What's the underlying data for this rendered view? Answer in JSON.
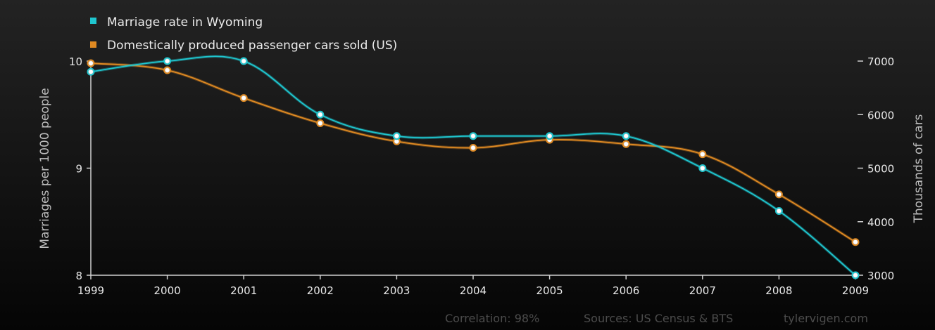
{
  "chart_data": {
    "type": "line",
    "x": [
      1999,
      2000,
      2001,
      2002,
      2003,
      2004,
      2005,
      2006,
      2007,
      2008,
      2009
    ],
    "xticks": [
      "1999",
      "2000",
      "2001",
      "2002",
      "2003",
      "2004",
      "2005",
      "2006",
      "2007",
      "2008",
      "2009"
    ],
    "series": [
      {
        "name": "Marriage rate in Wyoming",
        "axis": "left",
        "color": "#1fc6cf",
        "values": [
          9.9,
          10.0,
          10.0,
          9.5,
          9.3,
          9.3,
          9.3,
          9.3,
          9.0,
          8.6,
          8.0
        ]
      },
      {
        "name": "Domestically produced passenger cars sold (US)",
        "axis": "right",
        "color": "#e08a22",
        "values": [
          6960,
          6830,
          6310,
          5840,
          5500,
          5380,
          5530,
          5450,
          5260,
          4510,
          3620
        ]
      }
    ],
    "left_axis": {
      "label": "Marriages per 1000 people",
      "range": [
        8,
        10
      ],
      "ticks": [
        "8",
        "9",
        "10"
      ]
    },
    "right_axis": {
      "label": "Thousands of cars",
      "range": [
        3000,
        7000
      ],
      "ticks": [
        "3000",
        "4000",
        "5000",
        "6000",
        "7000"
      ]
    },
    "legend_position": "top-left",
    "grid": false
  },
  "footer": {
    "correlation": "Correlation: 98%",
    "sources": "Sources: US Census & BTS",
    "site": "tylervigen.com"
  }
}
